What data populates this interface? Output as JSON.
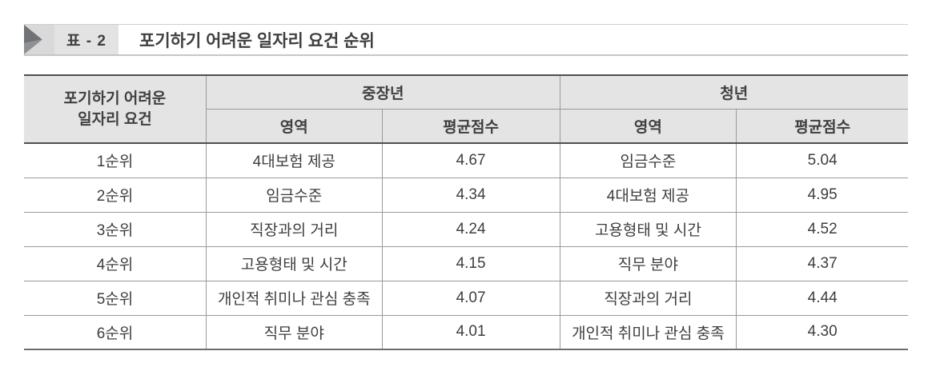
{
  "caption": {
    "tag": "표 - 2",
    "title": "포기하기 어려운 일자리 요건 순위"
  },
  "table": {
    "rank_header": {
      "line1": "포기하기 어려운",
      "line2": "일자리 요건"
    },
    "groups": [
      {
        "label": "중장년",
        "area_header": "영역",
        "score_header": "평균점수"
      },
      {
        "label": "청년",
        "area_header": "영역",
        "score_header": "평균점수"
      }
    ],
    "rows": [
      {
        "rank": "1순위",
        "mid_area": "4대보험 제공",
        "mid_score": "4.67",
        "youth_area": "임금수준",
        "youth_score": "5.04"
      },
      {
        "rank": "2순위",
        "mid_area": "임금수준",
        "mid_score": "4.34",
        "youth_area": "4대보험 제공",
        "youth_score": "4.95"
      },
      {
        "rank": "3순위",
        "mid_area": "직장과의 거리",
        "mid_score": "4.24",
        "youth_area": "고용형태 및 시간",
        "youth_score": "4.52"
      },
      {
        "rank": "4순위",
        "mid_area": "고용형태 및 시간",
        "mid_score": "4.15",
        "youth_area": "직무 분야",
        "youth_score": "4.37"
      },
      {
        "rank": "5순위",
        "mid_area": "개인적 취미나 관심 충족",
        "mid_score": "4.07",
        "youth_area": "직장과의 거리",
        "youth_score": "4.44"
      },
      {
        "rank": "6순위",
        "mid_area": "직무 분야",
        "mid_score": "4.01",
        "youth_area": "개인적 취미나 관심 충족",
        "youth_score": "4.30"
      }
    ]
  },
  "colors": {
    "header_bg": "#e4e4e4",
    "thick_border": "#4e4e4e",
    "thin_border": "#9a9a9a",
    "text": "#3e3e3e",
    "caption_rule": "#c6c6c6",
    "tag_box_bg": "#e3e3e3",
    "icon_dark": "#717274",
    "icon_mid": "#8f9093",
    "icon_bg": "#d9d9d9"
  }
}
